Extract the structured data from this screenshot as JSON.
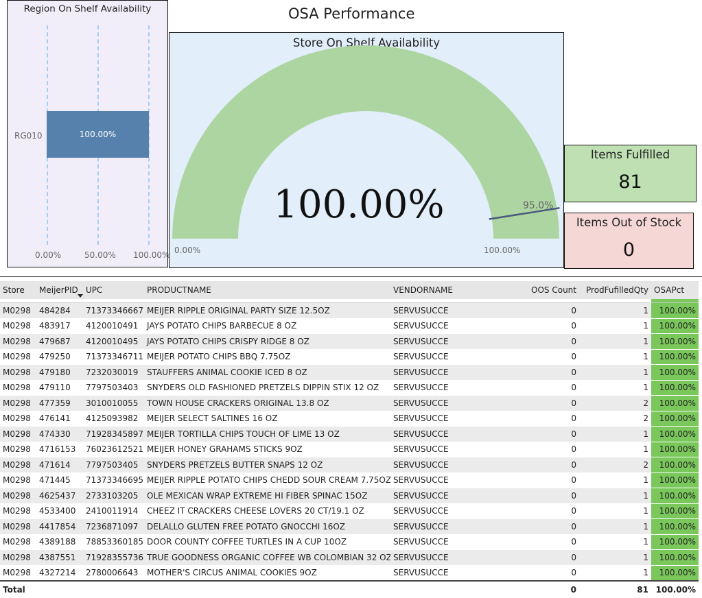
{
  "page_title": "OSA Performance",
  "region_chart": {
    "title": "Region On Shelf Availability",
    "category": "RG010",
    "bar_label": "100.00%",
    "x_ticks": [
      "0.00%",
      "50.00%",
      "100.00%"
    ]
  },
  "chart_data": {
    "type": "bar",
    "orientation": "horizontal",
    "title": "Region On Shelf Availability",
    "categories": [
      "RG010"
    ],
    "values": [
      100.0
    ],
    "xlim": [
      0,
      100
    ],
    "x_ticks": [
      "0.00%",
      "50.00%",
      "100.00%"
    ],
    "data_labels": [
      "100.00%"
    ],
    "grid": true,
    "bar_color": "#5681ad"
  },
  "gauge": {
    "title": "Store On Shelf Availability",
    "value": 100.0,
    "value_label": "100.00%",
    "min_label": "0.00%",
    "max_label": "100.00%",
    "target": 95.0,
    "target_label": "95.0%",
    "fill_color": "#add5a1"
  },
  "kpis": {
    "fulfilled": {
      "label": "Items Fulfilled",
      "value": "81"
    },
    "out_of_stock": {
      "label": "Items Out of Stock",
      "value": "0"
    }
  },
  "table": {
    "columns": [
      "Store",
      "MeijerPID",
      "UPC",
      "PRODUCTNAME",
      "VENDORNAME",
      "OOS Count",
      "ProdFufilledQty",
      "OSAPct"
    ],
    "sorted_column": "MeijerPID",
    "rows": [
      [
        "M0298",
        "484284",
        "71373346667",
        "MEIJER RIPPLE ORIGINAL PARTY SIZE 12.5OZ",
        "SERVUSUCCE",
        "0",
        "1",
        "100.00%"
      ],
      [
        "M0298",
        "483917",
        "4120010491",
        "JAYS POTATO CHIPS BARBECUE 8 OZ",
        "SERVUSUCCE",
        "0",
        "1",
        "100.00%"
      ],
      [
        "M0298",
        "479687",
        "4120010495",
        "JAYS POTATO CHIPS CRISPY RIDGE 8 OZ",
        "SERVUSUCCE",
        "0",
        "1",
        "100.00%"
      ],
      [
        "M0298",
        "479250",
        "71373346711",
        "MEIJER POTATO CHIPS BBQ 7.75OZ",
        "SERVUSUCCE",
        "0",
        "1",
        "100.00%"
      ],
      [
        "M0298",
        "479180",
        "7232030019",
        "STAUFFERS ANIMAL COOKIE ICED 8 OZ",
        "SERVUSUCCE",
        "0",
        "1",
        "100.00%"
      ],
      [
        "M0298",
        "479110",
        "7797503403",
        "SNYDERS OLD FASHIONED PRETZELS DIPPIN STIX 12 OZ",
        "SERVUSUCCE",
        "0",
        "1",
        "100.00%"
      ],
      [
        "M0298",
        "477359",
        "3010010055",
        "TOWN HOUSE CRACKERS ORIGINAL 13.8 OZ",
        "SERVUSUCCE",
        "0",
        "2",
        "100.00%"
      ],
      [
        "M0298",
        "476141",
        "4125093982",
        "MEIJER SELECT SALTINES 16 OZ",
        "SERVUSUCCE",
        "0",
        "2",
        "100.00%"
      ],
      [
        "M0298",
        "474330",
        "71928345897",
        "MEIJER TORTILLA CHIPS TOUCH OF LIME 13 OZ",
        "SERVUSUCCE",
        "0",
        "1",
        "100.00%"
      ],
      [
        "M0298",
        "4716153",
        "76023612521",
        "MEIJER HONEY GRAHAMS STICKS 9OZ",
        "SERVUSUCCE",
        "0",
        "1",
        "100.00%"
      ],
      [
        "M0298",
        "471614",
        "7797503405",
        "SNYDERS PRETZELS BUTTER SNAPS 12 OZ",
        "SERVUSUCCE",
        "0",
        "2",
        "100.00%"
      ],
      [
        "M0298",
        "471445",
        "71373346695",
        "MEIJER RIPPLE POTATO CHIPS CHEDD SOUR CREAM 7.75OZ",
        "SERVUSUCCE",
        "0",
        "1",
        "100.00%"
      ],
      [
        "M0298",
        "4625437",
        "2733103205",
        "OLE MEXICAN WRAP EXTREME HI FIBER SPINAC 15OZ",
        "SERVUSUCCE",
        "0",
        "1",
        "100.00%"
      ],
      [
        "M0298",
        "4533400",
        "2410011914",
        "CHEEZ IT CRACKERS CHEESE LOVERS 20 CT/19.1 OZ",
        "SERVUSUCCE",
        "0",
        "1",
        "100.00%"
      ],
      [
        "M0298",
        "4417854",
        "7236871097",
        "DELALLO GLUTEN FREE POTATO GNOCCHI 16OZ",
        "SERVUSUCCE",
        "0",
        "1",
        "100.00%"
      ],
      [
        "M0298",
        "4389188",
        "78853360185",
        "DOOR COUNTY COFFEE TURTLES IN A CUP 10OZ",
        "SERVUSUCCE",
        "0",
        "1",
        "100.00%"
      ],
      [
        "M0298",
        "4387551",
        "71928355736",
        "TRUE GOODNESS ORGANIC COFFEE WB COLOMBIAN 32 OZ",
        "SERVUSUCCE",
        "0",
        "1",
        "100.00%"
      ],
      [
        "M0298",
        "4327214",
        "2780006643",
        "MOTHER'S CIRCUS ANIMAL COOKIES 9OZ",
        "SERVUSUCCE",
        "0",
        "1",
        "100.00%"
      ]
    ],
    "total": {
      "label": "Total",
      "oos_count": "0",
      "fulfilled_qty": "81",
      "osa_pct": "100.00%"
    },
    "osa_color": "#7ac75b"
  }
}
